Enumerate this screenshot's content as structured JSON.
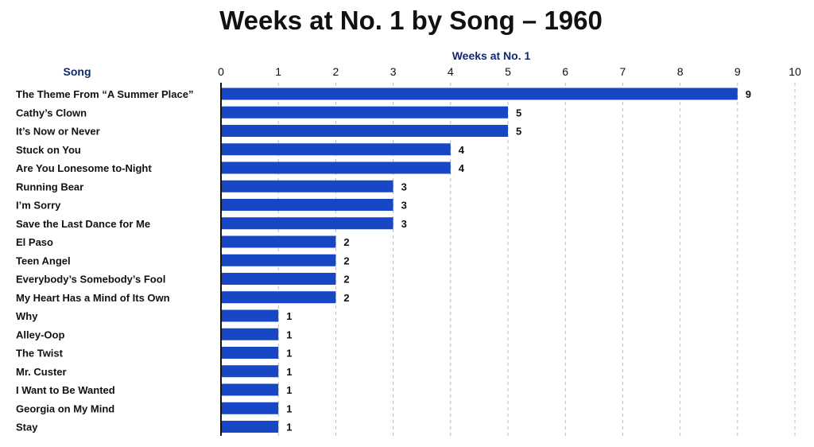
{
  "chart_data": {
    "type": "bar",
    "orientation": "horizontal",
    "title": "Weeks at No. 1 by Song – 1960",
    "xlabel": "Weeks at No. 1",
    "ylabel": "Song",
    "xlim": [
      0,
      10
    ],
    "xticks": [
      "0",
      "1",
      "2",
      "3",
      "4",
      "5",
      "6",
      "7",
      "8",
      "9",
      "10"
    ],
    "x_axis_position": "top",
    "grid": "vertical dashed",
    "data_labels": true,
    "categories": [
      "The Theme From “A Summer Place”",
      "Cathy’s Clown",
      "It’s Now or Never",
      "Stuck on You",
      "Are You Lonesome to-Night",
      "Running Bear",
      "I’m Sorry",
      "Save the Last Dance for Me",
      "El Paso",
      "Teen Angel",
      "Everybody’s Somebody’s Fool",
      "My Heart Has a Mind of Its Own",
      "Why",
      "Alley-Oop",
      "The Twist",
      "Mr. Custer",
      "I Want to Be Wanted",
      "Georgia on My Mind",
      "Stay"
    ],
    "values": [
      9,
      5,
      5,
      4,
      4,
      3,
      3,
      3,
      2,
      2,
      2,
      2,
      1,
      1,
      1,
      1,
      1,
      1,
      1
    ],
    "colors": {
      "bar": "#1747c4",
      "axis_title": "#0f2a6b",
      "text": "#111111",
      "grid": "#bdbdbd"
    }
  }
}
